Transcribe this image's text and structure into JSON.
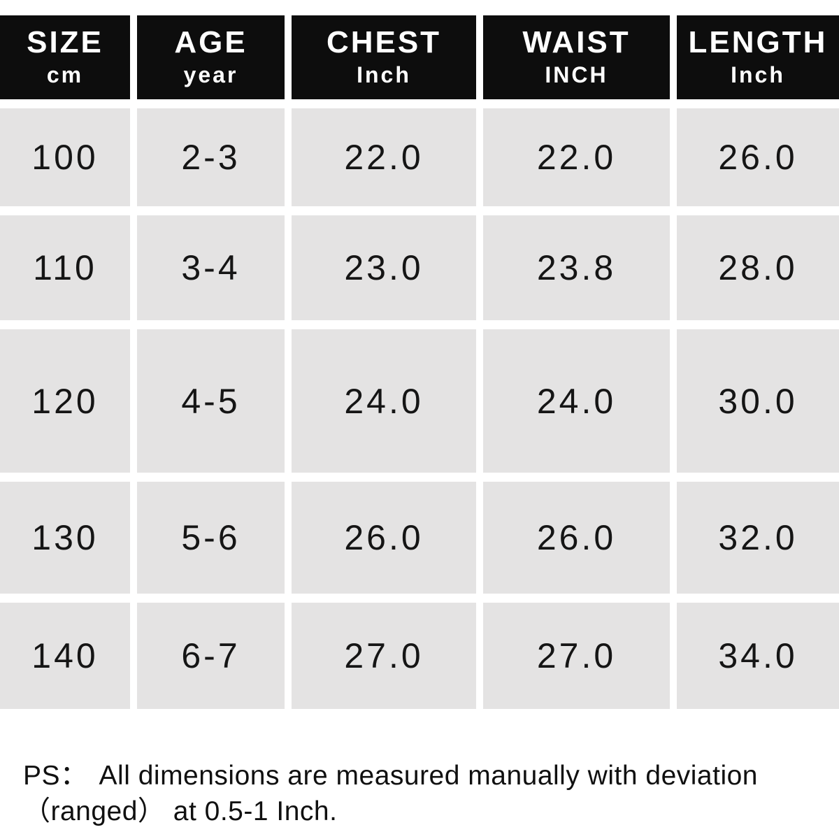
{
  "chart_data": {
    "type": "table",
    "title": "",
    "columns": [
      {
        "title": "SIZE",
        "unit": "cm"
      },
      {
        "title": "AGE",
        "unit": "year"
      },
      {
        "title": "CHEST",
        "unit": "Inch"
      },
      {
        "title": "WAIST",
        "unit": "INCH"
      },
      {
        "title": "LENGTH",
        "unit": "Inch"
      }
    ],
    "rows": [
      [
        "100",
        "2-3",
        "22.0",
        "22.0",
        "26.0"
      ],
      [
        "110",
        "3-4",
        "23.0",
        "23.8",
        "28.0"
      ],
      [
        "120",
        "4-5",
        "24.0",
        "24.0",
        "30.0"
      ],
      [
        "130",
        "5-6",
        "26.0",
        "26.0",
        "32.0"
      ],
      [
        "140",
        "6-7",
        "27.0",
        "27.0",
        "34.0"
      ]
    ]
  },
  "table": {
    "columns": [
      {
        "title": "SIZE",
        "unit": "cm"
      },
      {
        "title": "AGE",
        "unit": "year"
      },
      {
        "title": "CHEST",
        "unit": "Inch"
      },
      {
        "title": "WAIST",
        "unit": "INCH"
      },
      {
        "title": "LENGTH",
        "unit": "Inch"
      }
    ],
    "rows": [
      [
        "100",
        "2-3",
        "22.0",
        "22.0",
        "26.0"
      ],
      [
        "110",
        "3-4",
        "23.0",
        "23.8",
        "28.0"
      ],
      [
        "120",
        "4-5",
        "24.0",
        "24.0",
        "30.0"
      ],
      [
        "130",
        "5-6",
        "26.0",
        "26.0",
        "32.0"
      ],
      [
        "140",
        "6-7",
        "27.0",
        "27.0",
        "34.0"
      ]
    ]
  },
  "note": {
    "label": "PS：",
    "line1": "All dimensions are measured manually with deviation",
    "line2": "（ranged） at 0.5-1 Inch."
  },
  "colors": {
    "header_bg": "#0d0d0d",
    "header_text": "#ffffff",
    "cell_bg": "#e4e3e3",
    "cell_text": "#151515",
    "page_bg": "#ffffff"
  }
}
